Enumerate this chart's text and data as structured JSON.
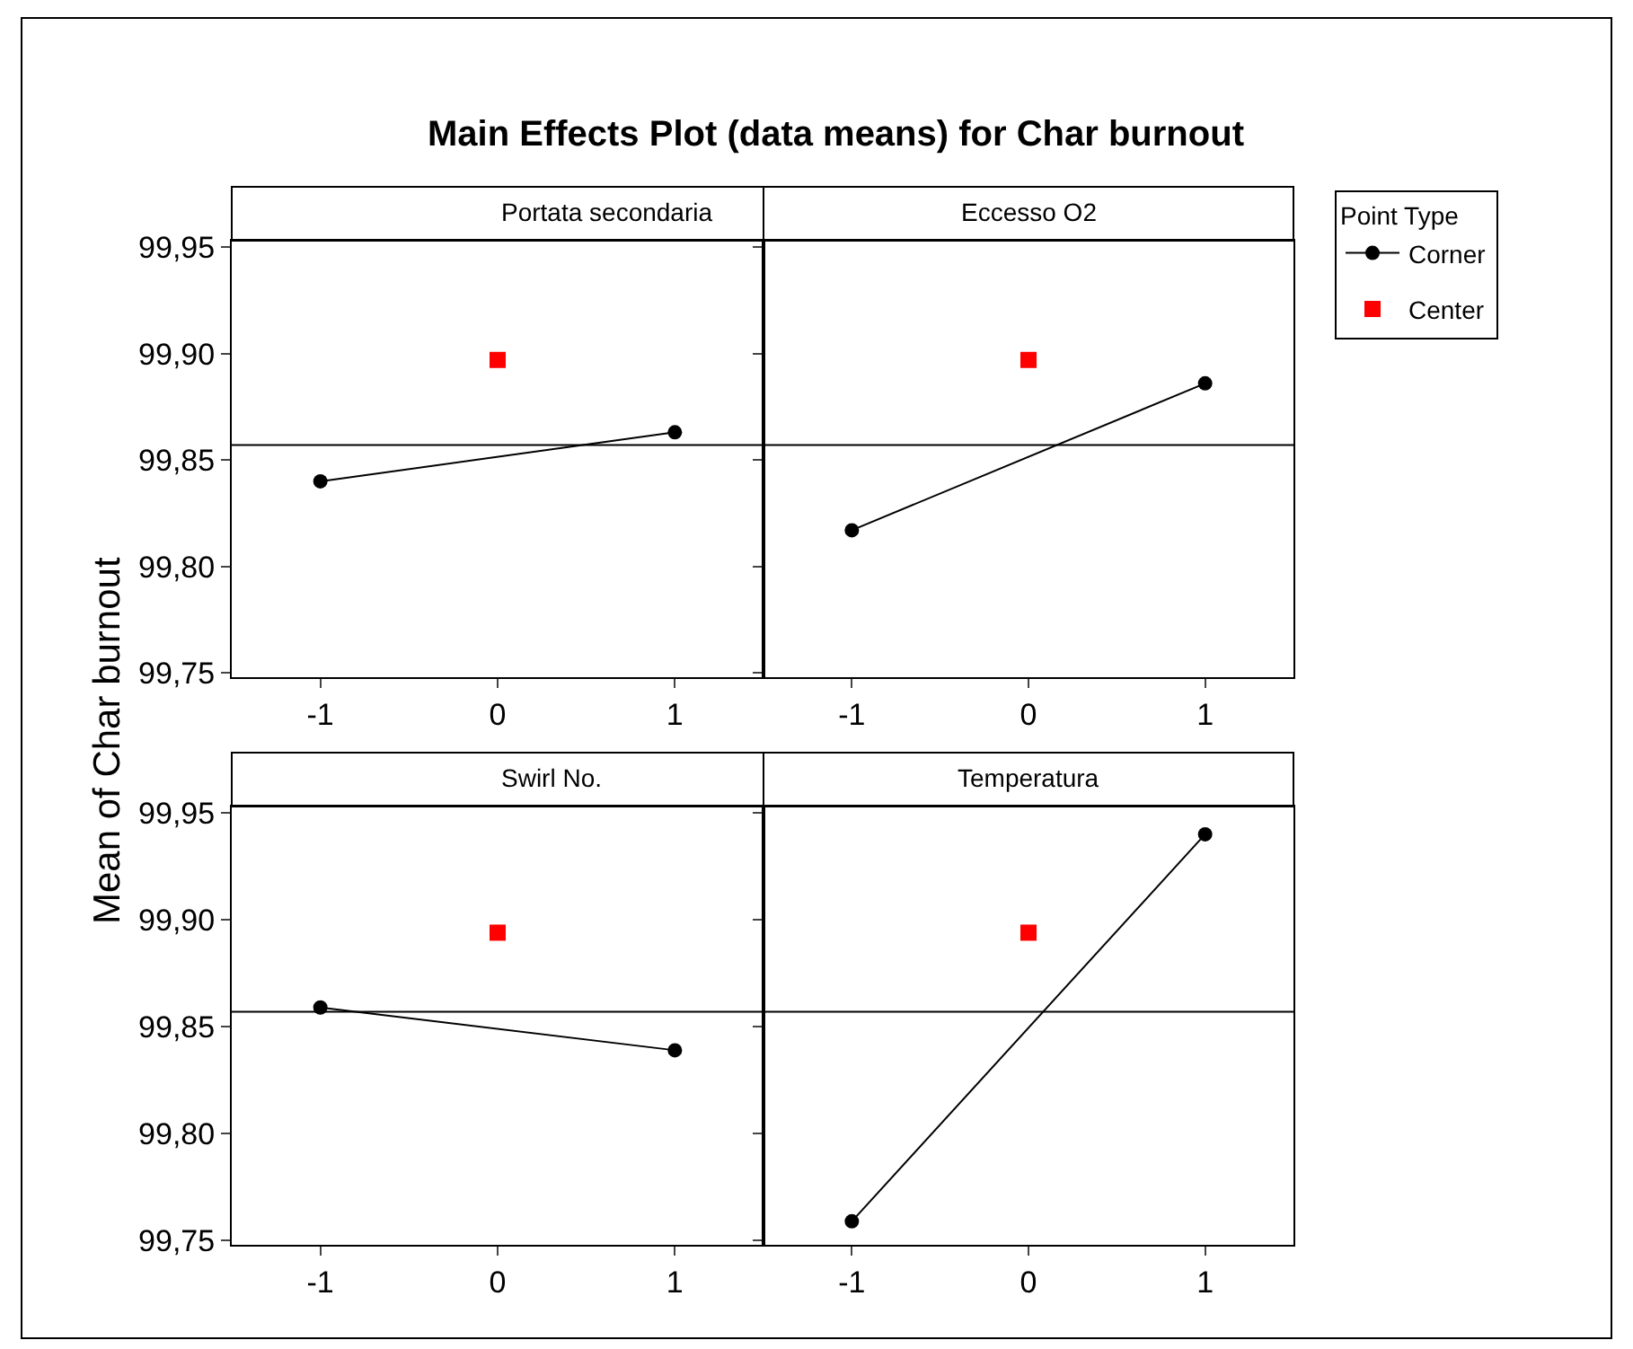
{
  "chart_data": [
    {
      "type": "line",
      "title": "Portata secondaria",
      "annotations": [
        "Main Effects Plot (data means) for Char burnout"
      ],
      "ylabel": "Mean of Char burnout",
      "legend_title": "Point Type",
      "legend": "top right",
      "categories": [
        "-1",
        "0",
        "1"
      ],
      "ylim": [
        99.748,
        99.953
      ],
      "yticks": [
        {
          "value": 99.75,
          "label": "99,75"
        },
        {
          "value": 99.8,
          "label": "99,80"
        },
        {
          "value": 99.85,
          "label": "99,85"
        },
        {
          "value": 99.9,
          "label": "99,90"
        },
        {
          "value": 99.95,
          "label": "99,95"
        }
      ],
      "grid": false,
      "ref_lines": [
        {
          "axis": "y",
          "value": 99.857,
          "color": "#000000"
        }
      ],
      "series": [
        {
          "name": "Corner",
          "color": "#000000",
          "marker": "circle",
          "line_style": "solid",
          "values": [
            99.84,
            null,
            99.863
          ]
        },
        {
          "name": "Center",
          "type": "scatter",
          "color": "#ff0000",
          "marker": "square",
          "values": [
            null,
            99.897,
            null
          ]
        }
      ]
    },
    {
      "type": "line",
      "title": "Eccesso O2",
      "categories": [
        "-1",
        "0",
        "1"
      ],
      "ylim": [
        99.748,
        99.953
      ],
      "yticks": [
        {
          "value": 99.75,
          "label": null
        },
        {
          "value": 99.8,
          "label": null
        },
        {
          "value": 99.85,
          "label": null
        },
        {
          "value": 99.9,
          "label": null
        },
        {
          "value": 99.95,
          "label": null
        }
      ],
      "tick_labels": "x",
      "grid": false,
      "ref_lines": [
        {
          "axis": "y",
          "value": 99.857,
          "color": "#000000"
        }
      ],
      "series": [
        {
          "color": "#000000",
          "marker": "circle",
          "line_style": "solid",
          "values": [
            99.817,
            null,
            99.886
          ]
        },
        {
          "type": "scatter",
          "color": "#ff0000",
          "marker": "square",
          "values": [
            null,
            99.897,
            null
          ]
        }
      ]
    },
    {
      "type": "line",
      "title": "Swirl No.",
      "categories": [
        "-1",
        "0",
        "1"
      ],
      "ylim": [
        99.748,
        99.953
      ],
      "yticks": [
        {
          "value": 99.75,
          "label": "99,75"
        },
        {
          "value": 99.8,
          "label": "99,80"
        },
        {
          "value": 99.85,
          "label": "99,85"
        },
        {
          "value": 99.9,
          "label": "99,90"
        },
        {
          "value": 99.95,
          "label": "99,95"
        }
      ],
      "grid": false,
      "ref_lines": [
        {
          "axis": "y",
          "value": 99.857,
          "color": "#000000"
        }
      ],
      "series": [
        {
          "color": "#000000",
          "marker": "circle",
          "line_style": "solid",
          "values": [
            99.859,
            null,
            99.839
          ]
        },
        {
          "type": "scatter",
          "color": "#ff0000",
          "marker": "square",
          "values": [
            null,
            99.894,
            null
          ]
        }
      ]
    },
    {
      "type": "line",
      "title": "Temperatura",
      "categories": [
        "-1",
        "0",
        "1"
      ],
      "ylim": [
        99.748,
        99.953
      ],
      "yticks": [
        {
          "value": 99.75,
          "label": null
        },
        {
          "value": 99.8,
          "label": null
        },
        {
          "value": 99.85,
          "label": null
        },
        {
          "value": 99.9,
          "label": null
        },
        {
          "value": 99.95,
          "label": null
        }
      ],
      "tick_labels": "x",
      "grid": false,
      "ref_lines": [
        {
          "axis": "y",
          "value": 99.857,
          "color": "#000000"
        }
      ],
      "series": [
        {
          "color": "#000000",
          "marker": "circle",
          "line_style": "solid",
          "values": [
            99.759,
            null,
            99.94
          ]
        },
        {
          "type": "scatter",
          "color": "#ff0000",
          "marker": "square",
          "values": [
            null,
            99.894,
            null
          ]
        }
      ]
    }
  ]
}
